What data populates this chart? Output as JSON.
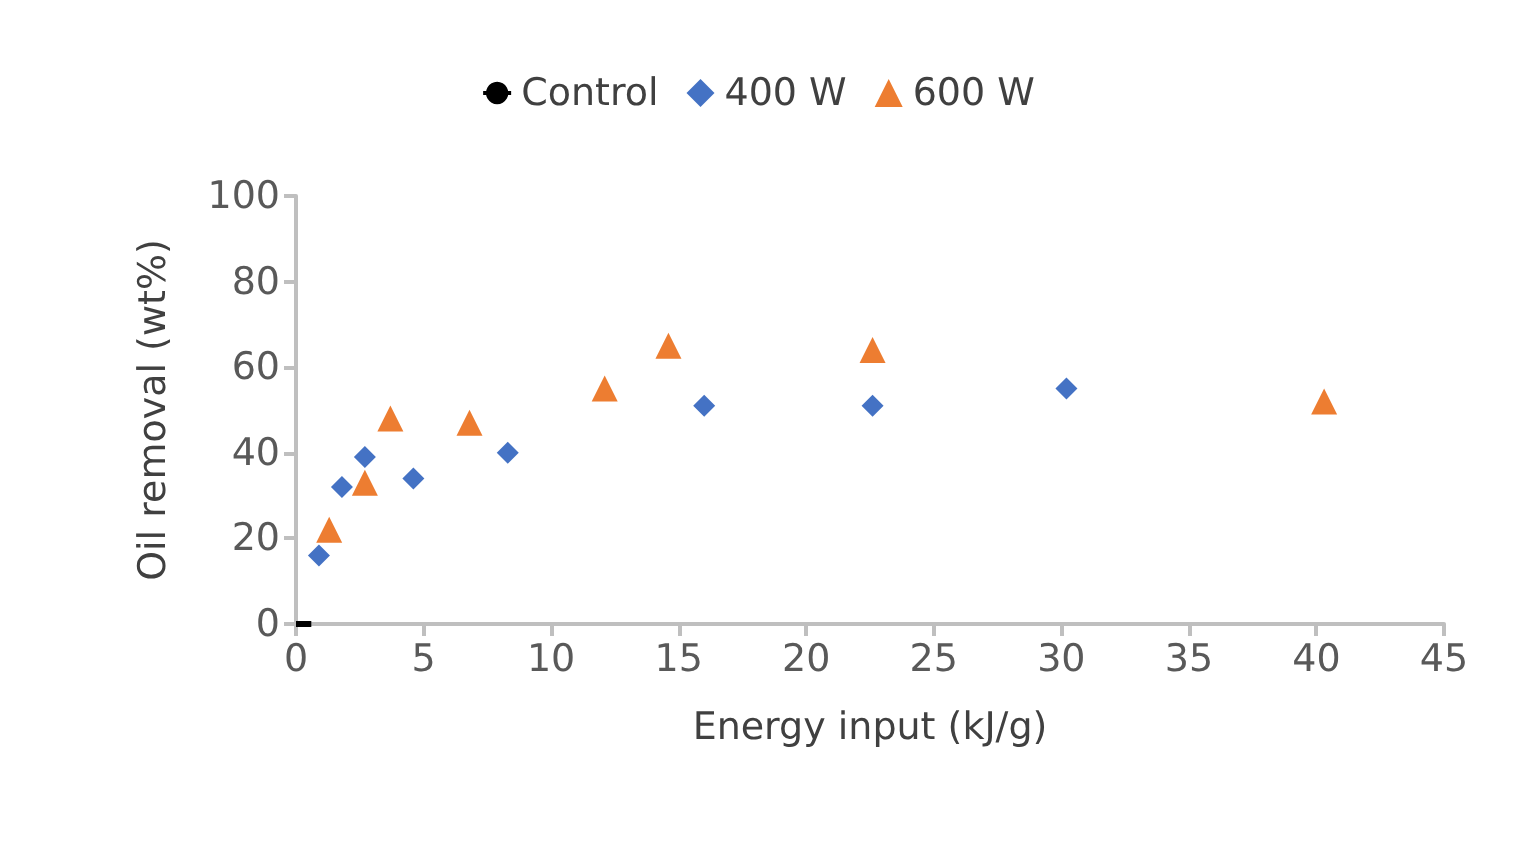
{
  "chart_data": {
    "type": "scatter",
    "xlabel": "Energy input (kJ/g)",
    "ylabel": "Oil removal (wt%)",
    "xlim": [
      0,
      45
    ],
    "xticks": [
      0,
      5,
      10,
      15,
      20,
      25,
      30,
      35,
      40,
      45
    ],
    "ylim": [
      0,
      100
    ],
    "yticks": [
      0,
      20,
      40,
      60,
      80,
      100
    ],
    "grid": false,
    "legend": "top",
    "series": [
      {
        "name": "Control",
        "type": "line",
        "color": "#000000",
        "marker": "none",
        "x": [
          0,
          0.6
        ],
        "values": [
          0,
          0
        ]
      },
      {
        "name": "400 W",
        "color": "#4472c4",
        "marker": "diamond",
        "x": [
          0.9,
          1.8,
          2.7,
          4.6,
          8.3,
          16,
          22.6,
          30.2
        ],
        "values": [
          16,
          32,
          39,
          34,
          40,
          51,
          51,
          55
        ]
      },
      {
        "name": "600 W",
        "color": "#ed7d31",
        "marker": "triangle",
        "x": [
          1.3,
          2.7,
          3.7,
          6.8,
          12.1,
          14.6,
          22.6,
          40.3
        ],
        "values": [
          22,
          33,
          48,
          47,
          55,
          65,
          64,
          52
        ]
      }
    ]
  }
}
